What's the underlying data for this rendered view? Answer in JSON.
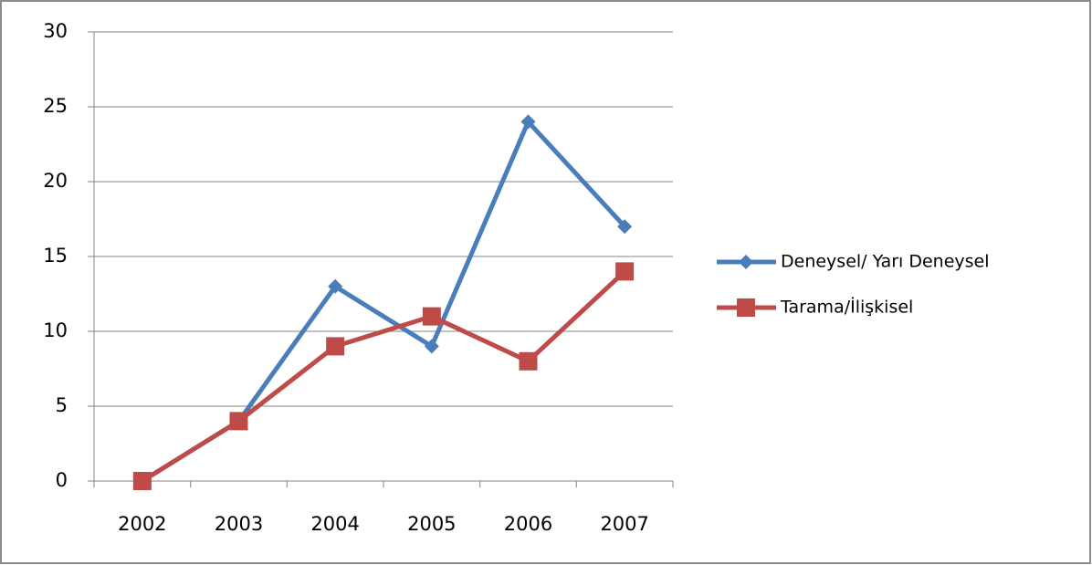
{
  "chart_data": {
    "type": "line",
    "categories": [
      "2002",
      "2003",
      "2004",
      "2005",
      "2006",
      "2007"
    ],
    "series": [
      {
        "name": "Deneysel/ Yarı Deneysel",
        "color": "#4a7ebb",
        "marker": "diamond",
        "values": [
          0,
          4,
          13,
          9,
          24,
          17
        ]
      },
      {
        "name": "Tarama/İlişkisel",
        "color": "#be4b48",
        "marker": "square",
        "values": [
          0,
          4,
          9,
          11,
          8,
          14
        ]
      }
    ],
    "ylim": [
      0,
      30
    ],
    "yticks": [
      0,
      5,
      10,
      15,
      20,
      25,
      30
    ],
    "grid": true,
    "legend": "right"
  }
}
